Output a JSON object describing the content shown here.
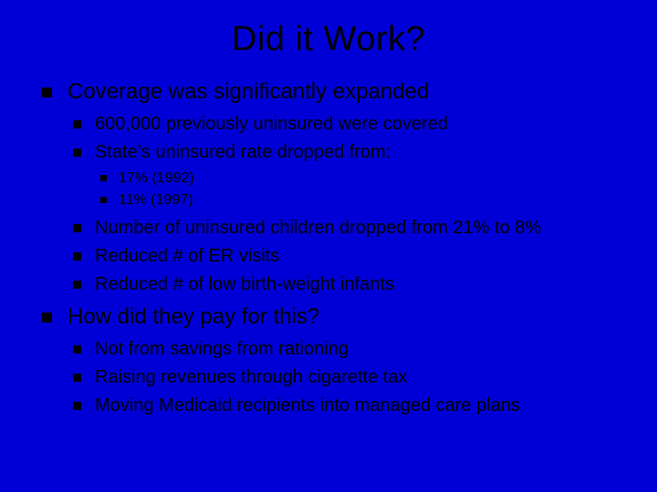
{
  "colors": {
    "background": "#0000d6",
    "text": "#000000",
    "bullet": "#000000"
  },
  "typography": {
    "family": "Verdana, Geneva, sans-serif",
    "title_size": 38,
    "lvl1_size": 24,
    "lvl2_size": 20,
    "lvl3_size": 16
  },
  "title": "Did it Work?",
  "bullets": {
    "b1": "Coverage was significantly expanded",
    "b1_1": "600,000 previously uninsured were covered",
    "b1_2": "State’s uninsured rate dropped from:",
    "b1_2_1": "17% (1992)",
    "b1_2_2": "11% (1997)",
    "b1_3": "Number of uninsured children dropped from 21% to 8%",
    "b1_4": "Reduced # of ER visits",
    "b1_5": "Reduced # of low birth-weight infants",
    "b2": "How did they pay for this?",
    "b2_1": "Not from savings from rationing",
    "b2_2": "Raising revenues through cigarette tax",
    "b2_3": "Moving Medicaid recipients into managed care plans"
  }
}
